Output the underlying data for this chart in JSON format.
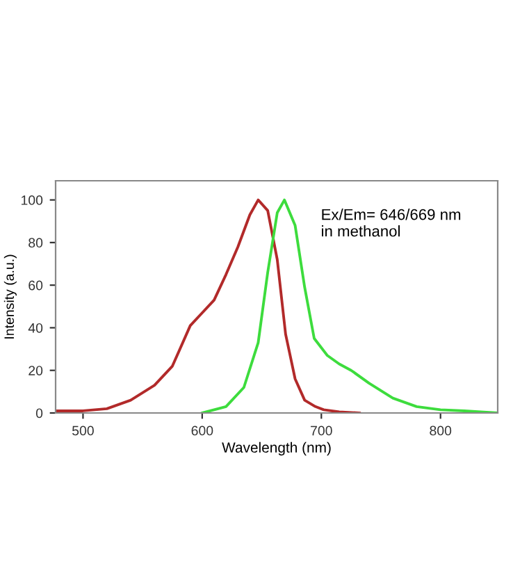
{
  "chart_data": {
    "type": "line",
    "xlabel": "Wavelength (nm)",
    "ylabel": "Intensity (a.u.)",
    "annotations": [
      "Ex/Em= 646/669 nm\nin methanol"
    ],
    "xlim": [
      477,
      848
    ],
    "ylim": [
      0,
      109
    ],
    "xticks": [
      500,
      600,
      700,
      800
    ],
    "yticks": [
      0,
      20,
      40,
      60,
      80,
      100
    ],
    "grid": false,
    "legend": false,
    "marker": "none",
    "line_style": "solid",
    "series": [
      {
        "color": "#b22a2a",
        "x": [
          477,
          500,
          520,
          540,
          560,
          575,
          590,
          600,
          610,
          620,
          630,
          640,
          647,
          655,
          663,
          670,
          678,
          686,
          695,
          702,
          715,
          732
        ],
        "values": [
          1,
          1,
          2,
          6,
          13,
          22,
          41,
          47,
          53,
          65,
          78,
          93,
          100,
          95,
          72,
          37,
          16,
          6,
          3,
          1.5,
          0.5,
          0
        ]
      },
      {
        "color": "#3ddc3d",
        "x": [
          600,
          620,
          635,
          647,
          655,
          663,
          669,
          678,
          686,
          694,
          705,
          715,
          725,
          740,
          760,
          780,
          800,
          820,
          848
        ],
        "values": [
          0,
          3,
          12,
          33,
          66,
          94,
          100,
          88,
          59,
          35,
          27,
          23,
          20,
          14,
          7,
          3,
          1.5,
          1,
          0
        ]
      }
    ]
  }
}
